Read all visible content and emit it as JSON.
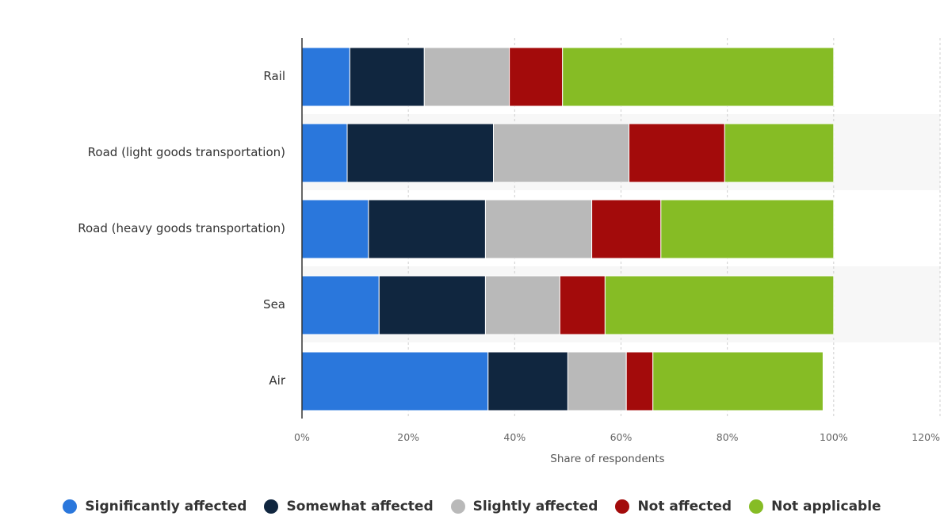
{
  "chart_data": {
    "type": "bar",
    "orientation": "horizontal",
    "stacked": true,
    "categories": [
      "Rail",
      "Road (light goods transportation)",
      "Road (heavy goods transportation)",
      "Sea",
      "Air"
    ],
    "series": [
      {
        "name": "Significantly affected",
        "color": "#2a77dc",
        "values": [
          9,
          8.5,
          12.5,
          14.5,
          35
        ]
      },
      {
        "name": "Somewhat affected",
        "color": "#10263f",
        "values": [
          14,
          27.5,
          22,
          20,
          15
        ]
      },
      {
        "name": "Slightly affected",
        "color": "#b9b9b9",
        "values": [
          16,
          25.5,
          20,
          14,
          11
        ]
      },
      {
        "name": "Not affected",
        "color": "#a30b0b",
        "values": [
          10,
          18,
          13,
          8.5,
          5
        ]
      },
      {
        "name": "Not applicable",
        "color": "#86bc25",
        "values": [
          51,
          20.5,
          32.5,
          43,
          32
        ]
      }
    ],
    "xlabel": "Share of respondents",
    "xlim": [
      0,
      120
    ],
    "ticks": [
      0,
      20,
      40,
      60,
      80,
      100,
      120
    ],
    "tick_labels": [
      "0%",
      "20%",
      "40%",
      "60%",
      "80%",
      "100%",
      "120%"
    ],
    "grid": true,
    "legend_position": "bottom"
  }
}
